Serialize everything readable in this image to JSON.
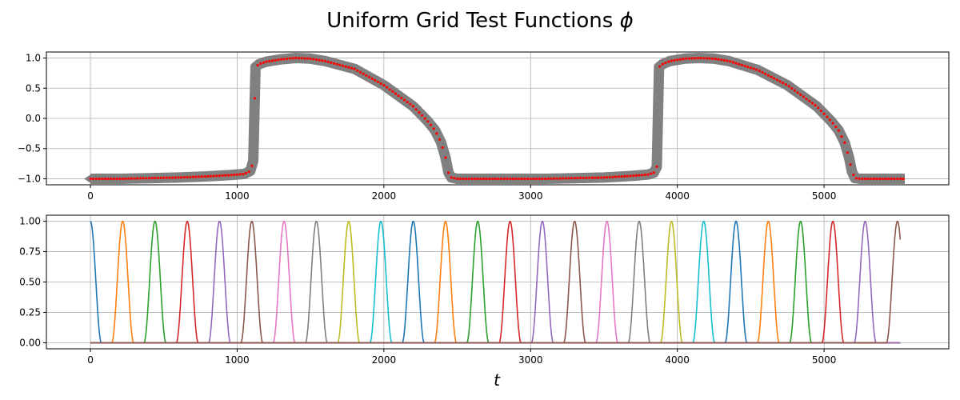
{
  "figure": {
    "title_prefix": "Uniform Grid Test Functions ",
    "title_symbol": "ϕ"
  },
  "chart_data": [
    {
      "type": "line",
      "title": "",
      "xlabel": "",
      "ylabel": "",
      "xlim": [
        -300,
        5850
      ],
      "ylim": [
        -1.1,
        1.1
      ],
      "xticks": [
        0,
        1000,
        2000,
        3000,
        4000,
        5000
      ],
      "yticks": [
        -1.0,
        -0.5,
        0.0,
        0.5,
        1.0
      ],
      "xtick_labels": [
        "0",
        "1000",
        "2000",
        "3000",
        "4000",
        "5000"
      ],
      "ytick_labels": [
        "−1.0",
        "−0.5",
        "0.0",
        "0.5",
        "1.0"
      ],
      "grid": true,
      "series": [
        {
          "style": "thick-line",
          "color": "#808080",
          "x": [
            0,
            200,
            400,
            600,
            800,
            950,
            1050,
            1090,
            1110,
            1125,
            1150,
            1200,
            1300,
            1400,
            1500,
            1600,
            1800,
            2000,
            2200,
            2300,
            2350,
            2390,
            2420,
            2440,
            2460,
            2500,
            2700,
            2900,
            3100,
            3300,
            3500,
            3700,
            3800,
            3840,
            3860,
            3875,
            3900,
            3950,
            4050,
            4150,
            4250,
            4350,
            4550,
            4750,
            4950,
            5050,
            5100,
            5140,
            5170,
            5190,
            5210,
            5250,
            5400,
            5550
          ],
          "y": [
            -1.0,
            -1.0,
            -0.99,
            -0.98,
            -0.96,
            -0.94,
            -0.92,
            -0.87,
            -0.7,
            0.85,
            0.9,
            0.94,
            0.98,
            1.0,
            0.99,
            0.95,
            0.82,
            0.55,
            0.2,
            -0.05,
            -0.2,
            -0.4,
            -0.65,
            -0.9,
            -0.98,
            -1.0,
            -1.0,
            -1.0,
            -1.0,
            -0.99,
            -0.98,
            -0.95,
            -0.93,
            -0.9,
            -0.8,
            0.85,
            0.9,
            0.95,
            0.99,
            1.0,
            0.99,
            0.95,
            0.8,
            0.55,
            0.2,
            -0.05,
            -0.2,
            -0.4,
            -0.65,
            -0.88,
            -0.99,
            -1.0,
            -1.0,
            -1.0
          ]
        },
        {
          "style": "dots",
          "color": "#ff0000",
          "step": 20
        }
      ]
    },
    {
      "type": "line",
      "title": "",
      "xlabel": "t",
      "ylabel": "",
      "xlim": [
        -300,
        5850
      ],
      "ylim": [
        -0.05,
        1.05
      ],
      "xticks": [
        0,
        1000,
        2000,
        3000,
        4000,
        5000
      ],
      "yticks": [
        0.0,
        0.25,
        0.5,
        0.75,
        1.0
      ],
      "xtick_labels": [
        "0",
        "1000",
        "2000",
        "3000",
        "4000",
        "5000"
      ],
      "ytick_labels": [
        "0.00",
        "0.25",
        "0.50",
        "0.75",
        "1.00"
      ],
      "grid": true,
      "bump_half_width": 75,
      "t_range": [
        0,
        5520
      ],
      "centers": [
        0,
        220,
        440,
        660,
        880,
        1100,
        1320,
        1540,
        1760,
        1980,
        2200,
        2420,
        2640,
        2860,
        3080,
        3300,
        3520,
        3740,
        3960,
        4180,
        4400,
        4620,
        4840,
        5060,
        5280,
        5500
      ],
      "colors": [
        "#1f77b4",
        "#ff7f0e",
        "#2ca02c",
        "#d62728",
        "#9467bd",
        "#8c564b",
        "#e377c2",
        "#7f7f7f",
        "#bcbd22",
        "#17becf"
      ]
    }
  ]
}
